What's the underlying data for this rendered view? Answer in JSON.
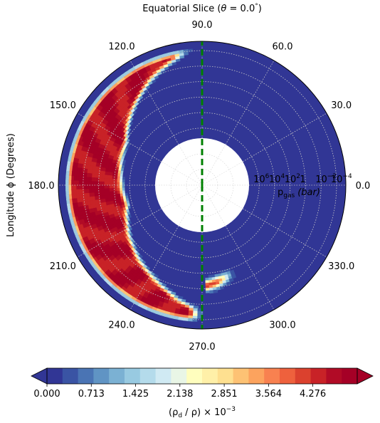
{
  "chart_data": {
    "type": "filled-contour polar",
    "title_prefix": "Equatorial Slice (",
    "title_theta": "θ",
    "title_eq": "  =  ",
    "title_value": "0.0",
    "title_deg": "°",
    "title_suffix": ")",
    "angular_axis_label": "Longitude ϕ (Degrees)",
    "angular_ticks": [
      "0.0",
      "30.0",
      "60.0",
      "90.0",
      "120.0",
      "150.0",
      "180.0",
      "210.0",
      "240.0",
      "270.0",
      "300.0",
      "330.0"
    ],
    "radial_axis_label_p": "p",
    "radial_axis_label_sub": "gas",
    "radial_axis_label_unit": "(bar)",
    "radial_ticks": [
      {
        "mant": "10",
        "exp": "6",
        "log": 6
      },
      {
        "mant": "10",
        "exp": "4",
        "log": 4
      },
      {
        "mant": "10",
        "exp": "2",
        "log": 2
      },
      {
        "mant": "1",
        "exp": "",
        "log": 0
      },
      {
        "mant": "10",
        "exp": "−2",
        "log": -2
      },
      {
        "mant": "10",
        "exp": "−4",
        "log": -4
      }
    ],
    "radial_range_log_pressure": [
      7.3,
      -5.2
    ],
    "grid": true,
    "reference_line_longitude_deg": [
      90,
      270
    ],
    "reference_line_color": "#008000",
    "colorbar": {
      "orientation": "horizontal",
      "label_prefix": "(ρ",
      "label_sub": "d",
      "label_mid": " / ρ) × 10",
      "label_exp": "−3",
      "tick_labels": [
        "0.000",
        "0.713",
        "1.425",
        "2.138",
        "2.851",
        "3.564",
        "4.276"
      ],
      "levels_min": 0.0,
      "levels_max": 4.99,
      "n_levels": 21,
      "colors": [
        "#313695",
        "#3a54a4",
        "#4a74b4",
        "#6094c4",
        "#7bb1d3",
        "#98cae1",
        "#b4dbeb",
        "#d0eaf3",
        "#e9f6e6",
        "#fffebe",
        "#fff0a8",
        "#fee090",
        "#fdc274",
        "#fca35e",
        "#f88150",
        "#ee613d",
        "#db412e",
        "#c82227",
        "#b10b26",
        "#a50026"
      ],
      "extend": "both"
    },
    "field_description_values": {
      "background_value": 0.0,
      "max_value": 4.99
    }
  }
}
